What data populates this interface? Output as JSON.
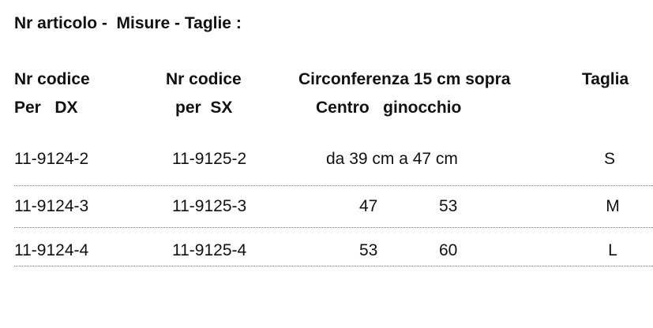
{
  "title": "Nr articolo -  Misure - Taglie :",
  "table": {
    "headers": [
      {
        "lines": [
          "Nr codice",
          "Per   DX"
        ]
      },
      {
        "lines": [
          "Nr codice",
          "per  SX"
        ]
      },
      {
        "lines": [
          "Circonferenza 15 cm sopra",
          "Centro   ginocchio"
        ]
      },
      {
        "lines": [
          "Taglia"
        ]
      }
    ],
    "rows": [
      {
        "dx": "11-9124-2",
        "sx": "11-9125-2",
        "circ": [
          "da 39 cm a 47 cm"
        ],
        "size": "S"
      },
      {
        "dx": "11-9124-3",
        "sx": "11-9125-3",
        "circ": [
          47,
          53
        ],
        "size": "M"
      },
      {
        "dx": "11-9124-4",
        "sx": "11-9125-4",
        "circ": [
          53,
          60
        ],
        "size": "L"
      }
    ]
  }
}
